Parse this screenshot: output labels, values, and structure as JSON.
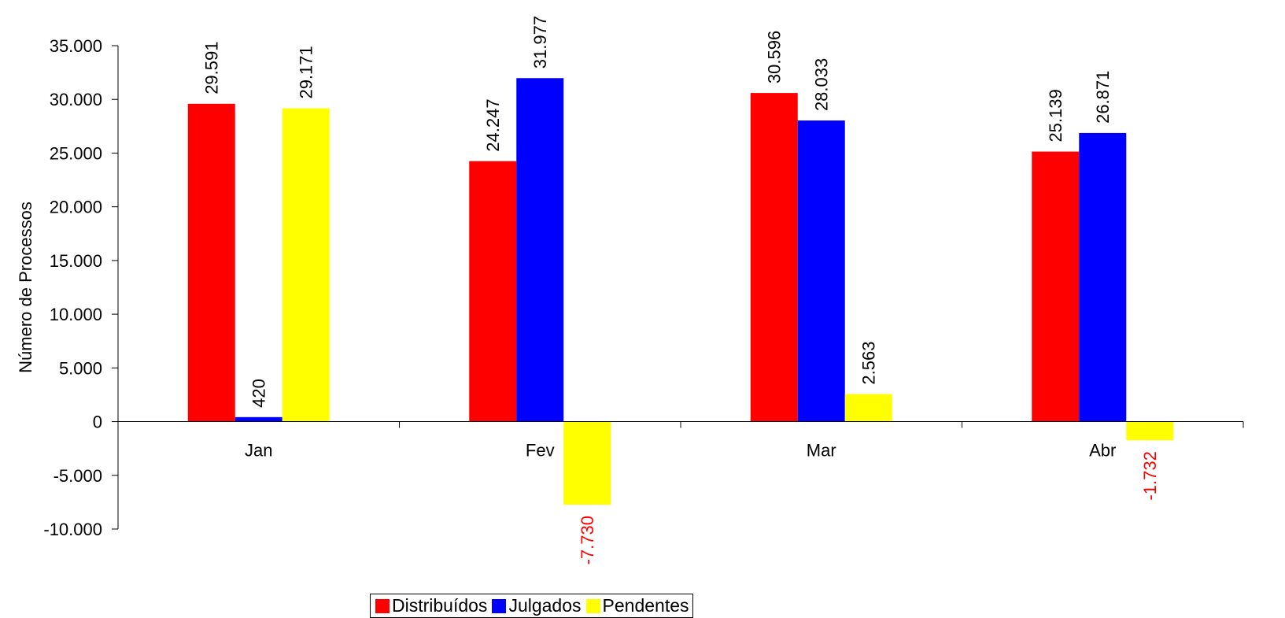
{
  "chart_data": {
    "type": "bar",
    "title": "",
    "xlabel": "",
    "ylabel": "Número de Processos",
    "categories": [
      "Jan",
      "Fev",
      "Mar",
      "Abr"
    ],
    "series": [
      {
        "name": "Distribuídos",
        "color": "#ff0000",
        "values": [
          29591,
          24247,
          30596,
          25139
        ],
        "labels": [
          "29.591",
          "24.247",
          "30.596",
          "25.139"
        ]
      },
      {
        "name": "Julgados",
        "color": "#0000ff",
        "values": [
          420,
          31977,
          28033,
          26871
        ],
        "labels": [
          "420",
          "31.977",
          "28.033",
          "26.871"
        ]
      },
      {
        "name": "Pendentes",
        "color": "#ffff00",
        "values": [
          29171,
          -7730,
          2563,
          -1732
        ],
        "labels": [
          "29.171",
          "-7.730",
          "2.563",
          "-1.732"
        ]
      }
    ],
    "negative_label_color": "#ff0000",
    "ylim": [
      -10000,
      35000
    ],
    "yticks": [
      -10000,
      -5000,
      0,
      5000,
      10000,
      15000,
      20000,
      25000,
      30000,
      35000
    ],
    "ytick_labels": [
      "-10.000",
      "-5.000",
      "0",
      "5.000",
      "10.000",
      "15.000",
      "20.000",
      "25.000",
      "30.000",
      "35.000"
    ],
    "grid": false,
    "legend_position": "bottom"
  }
}
